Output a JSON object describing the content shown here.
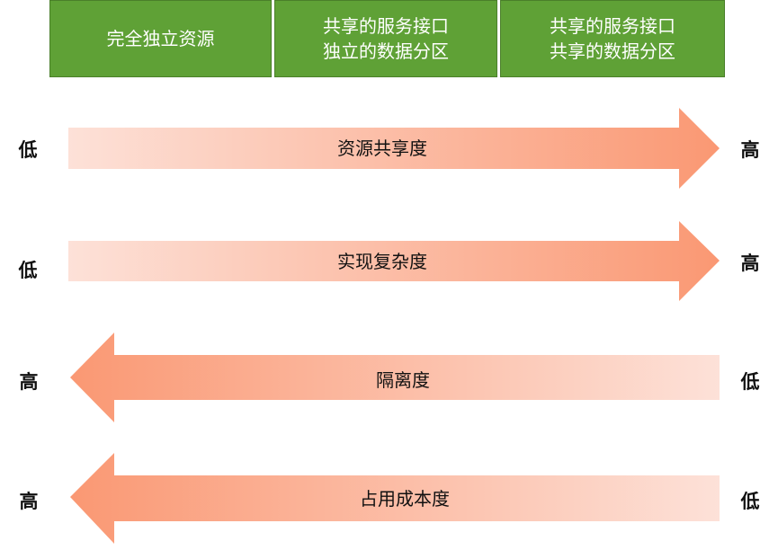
{
  "columns": [
    {
      "lines": [
        "完全独立资源"
      ]
    },
    {
      "lines": [
        "共享的服务接口",
        "独立的数据分区"
      ]
    },
    {
      "lines": [
        "共享的服务接口",
        "共享的数据分区"
      ]
    }
  ],
  "arrows": [
    {
      "label": "资源共享度",
      "direction": "right",
      "left": "低",
      "right": "高"
    },
    {
      "label": "实现复杂度",
      "direction": "right",
      "left": "低",
      "right": "高"
    },
    {
      "label": "隔离度",
      "direction": "left",
      "left": "高",
      "right": "低"
    },
    {
      "label": "占用成本度",
      "direction": "left",
      "left": "高",
      "right": "低"
    }
  ],
  "colors": {
    "box": "#5fa136",
    "arrow_light": "#fde1d8",
    "arrow_dark": "#fa9873"
  }
}
